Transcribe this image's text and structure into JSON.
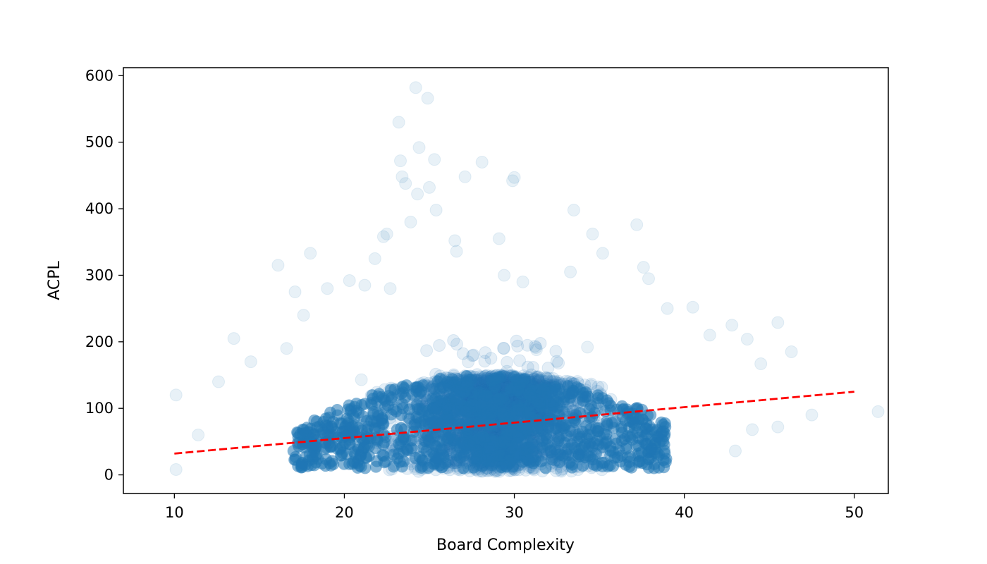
{
  "chart_data": {
    "type": "scatter",
    "title": "",
    "xlabel": "Board Complexity",
    "ylabel": "ACPL",
    "xlim": [
      7,
      52
    ],
    "ylim": [
      -28,
      612
    ],
    "xticks": [
      10,
      20,
      30,
      40,
      50
    ],
    "yticks": [
      0,
      100,
      200,
      300,
      400,
      500,
      600
    ],
    "xtick_labels": [
      "10",
      "20",
      "30",
      "40",
      "50"
    ],
    "ytick_labels": [
      "0",
      "100",
      "200",
      "300",
      "400",
      "500",
      "600"
    ],
    "grid": false,
    "legend": "none",
    "colors": {
      "points": "#1f77b4",
      "trend": "#ff0000"
    },
    "series": [
      {
        "kind": "scatter",
        "point_alpha": 0.05,
        "dense_cloud": {
          "description": "dense core of many overlapping points",
          "x_center": 29,
          "x_range": [
            16,
            40
          ],
          "y_range": [
            5,
            160
          ]
        },
        "points": [
          [
            10.1,
            120
          ],
          [
            10.1,
            8
          ],
          [
            11.4,
            60
          ],
          [
            12.6,
            140
          ],
          [
            13.5,
            205
          ],
          [
            14.5,
            170
          ],
          [
            16.1,
            315
          ],
          [
            16.6,
            190
          ],
          [
            17.1,
            275
          ],
          [
            17.6,
            240
          ],
          [
            18.0,
            333
          ],
          [
            19.0,
            280
          ],
          [
            20.3,
            292
          ],
          [
            21.2,
            285
          ],
          [
            21.8,
            325
          ],
          [
            22.3,
            358
          ],
          [
            22.5,
            362
          ],
          [
            22.7,
            280
          ],
          [
            23.2,
            530
          ],
          [
            23.3,
            472
          ],
          [
            23.4,
            448
          ],
          [
            23.6,
            438
          ],
          [
            23.9,
            380
          ],
          [
            24.2,
            582
          ],
          [
            24.3,
            422
          ],
          [
            24.4,
            492
          ],
          [
            24.9,
            566
          ],
          [
            25.0,
            432
          ],
          [
            25.3,
            474
          ],
          [
            25.4,
            398
          ],
          [
            26.5,
            352
          ],
          [
            26.6,
            336
          ],
          [
            27.1,
            448
          ],
          [
            28.1,
            470
          ],
          [
            29.1,
            355
          ],
          [
            29.4,
            300
          ],
          [
            29.9,
            442
          ],
          [
            30.0,
            447
          ],
          [
            30.5,
            290
          ],
          [
            33.3,
            305
          ],
          [
            33.5,
            398
          ],
          [
            34.6,
            362
          ],
          [
            35.2,
            333
          ],
          [
            37.2,
            376
          ],
          [
            37.6,
            312
          ],
          [
            37.9,
            295
          ],
          [
            39.0,
            250
          ],
          [
            40.5,
            252
          ],
          [
            41.5,
            210
          ],
          [
            42.8,
            225
          ],
          [
            43.7,
            204
          ],
          [
            44.5,
            167
          ],
          [
            45.5,
            229
          ],
          [
            46.3,
            185
          ],
          [
            47.5,
            90
          ],
          [
            44.0,
            68
          ],
          [
            43.0,
            36
          ],
          [
            45.5,
            72
          ],
          [
            51.4,
            95
          ],
          [
            21.0,
            143
          ],
          [
            31.3,
            188
          ],
          [
            34.3,
            192
          ],
          [
            37.0,
            30
          ]
        ]
      },
      {
        "kind": "line",
        "style": "dashed",
        "points": [
          [
            10,
            32
          ],
          [
            50,
            125
          ]
        ]
      }
    ]
  }
}
